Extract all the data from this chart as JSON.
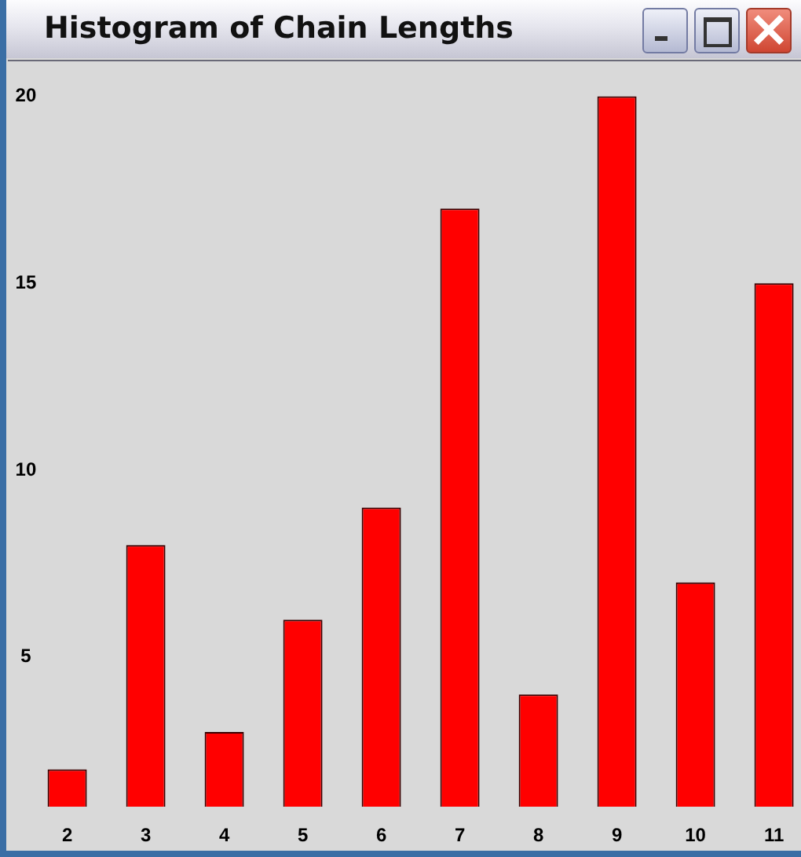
{
  "chart_data": {
    "type": "bar",
    "title": "Histogram of Chain Lengths",
    "categories": [
      "2",
      "3",
      "4",
      "5",
      "6",
      "7",
      "8",
      "9",
      "10",
      "11"
    ],
    "values": [
      2,
      8,
      3,
      6,
      9,
      17,
      4,
      20,
      7,
      15
    ],
    "color": "#ff0000",
    "ylim": [
      1,
      21
    ],
    "yticks": [
      5,
      10,
      15,
      20
    ]
  }
}
